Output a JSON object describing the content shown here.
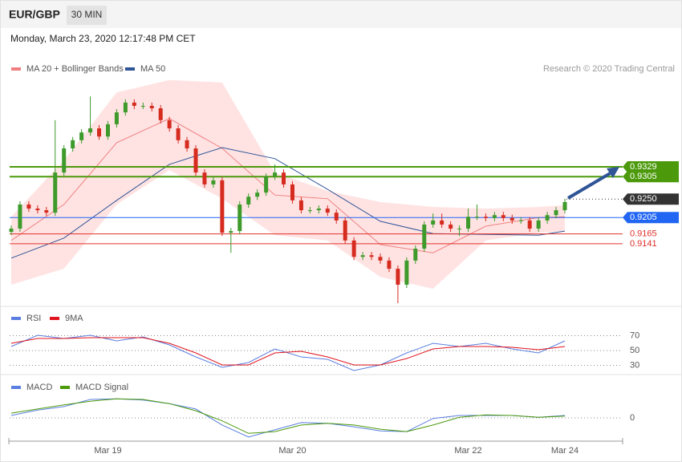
{
  "header": {
    "symbol": "EUR/GBP",
    "interval": "30 MIN",
    "timestamp": "Monday, March 23, 2020 12:17:48 PM CET",
    "credit": "Research © 2020 Trading Central"
  },
  "chart_data": [
    {
      "type": "candlestick",
      "categories": [
        null,
        null,
        null,
        null,
        null,
        null,
        null,
        null,
        null,
        null,
        null,
        "Mar 19",
        null,
        null,
        null,
        null,
        null,
        null,
        null,
        null,
        null,
        null,
        null,
        null,
        null,
        null,
        null,
        null,
        null,
        null,
        null,
        null,
        "Mar 20",
        null,
        null,
        null,
        null,
        null,
        null,
        null,
        null,
        null,
        null,
        null,
        null,
        null,
        null,
        null,
        null,
        null,
        null,
        null,
        "Mar 22",
        null,
        null,
        null,
        null,
        null,
        null,
        null,
        null,
        null,
        null,
        "Mar 24"
      ],
      "open": [
        0.917,
        0.9178,
        0.9237,
        0.9227,
        0.9223,
        0.9217,
        0.9315,
        0.9374,
        0.9394,
        0.9413,
        0.9423,
        0.9403,
        0.9433,
        0.9462,
        0.9486,
        0.9478,
        0.9478,
        0.9472,
        0.9443,
        0.9423,
        0.9394,
        0.9374,
        0.9315,
        0.9286,
        0.9296,
        0.9168,
        0.9172,
        0.9237,
        0.9256,
        0.9266,
        0.9305,
        0.9315,
        0.9286,
        0.9247,
        0.9223,
        0.9223,
        0.9227,
        0.9217,
        0.9198,
        0.9149,
        0.9109,
        0.9113,
        0.9109,
        0.91,
        0.908,
        0.9041,
        0.91,
        0.9129,
        0.9188,
        0.9198,
        0.9188,
        0.9178,
        0.9178,
        0.9207,
        0.9207,
        0.9204,
        0.9211,
        0.9204,
        0.9198,
        0.9198,
        0.9178,
        0.9198,
        0.9211,
        0.9223
      ],
      "high": [
        0.9186,
        0.9245,
        0.9245,
        0.9235,
        0.9231,
        0.9443,
        0.9382,
        0.9402,
        0.9421,
        0.9501,
        0.9431,
        0.9441,
        0.947,
        0.9494,
        0.9494,
        0.9486,
        0.9486,
        0.948,
        0.9451,
        0.9431,
        0.9402,
        0.9382,
        0.9323,
        0.9304,
        0.9304,
        0.918,
        0.9245,
        0.9264,
        0.9274,
        0.9313,
        0.9335,
        0.9323,
        0.9294,
        0.9255,
        0.9231,
        0.9235,
        0.9235,
        0.9225,
        0.9206,
        0.9157,
        0.9121,
        0.9121,
        0.9117,
        0.9108,
        0.9088,
        0.9108,
        0.9137,
        0.9196,
        0.9215,
        0.9215,
        0.9196,
        0.9186,
        0.9227,
        0.9237,
        0.9215,
        0.9219,
        0.9219,
        0.9212,
        0.9206,
        0.9206,
        0.9206,
        0.9219,
        0.9231,
        0.9251
      ],
      "low": [
        0.9162,
        0.917,
        0.9219,
        0.9215,
        0.9209,
        0.9209,
        0.9307,
        0.9366,
        0.9386,
        0.9405,
        0.9395,
        0.9395,
        0.9425,
        0.9454,
        0.947,
        0.947,
        0.9464,
        0.9435,
        0.9415,
        0.9386,
        0.9366,
        0.9307,
        0.9278,
        0.9278,
        0.916,
        0.9119,
        0.9164,
        0.9229,
        0.9248,
        0.9258,
        0.9297,
        0.9278,
        0.9239,
        0.9215,
        0.9215,
        0.9215,
        0.9209,
        0.919,
        0.9141,
        0.9101,
        0.9101,
        0.9101,
        0.9092,
        0.9072,
        0.8996,
        0.9033,
        0.9092,
        0.9121,
        0.918,
        0.918,
        0.917,
        0.916,
        0.917,
        0.9199,
        0.9196,
        0.9196,
        0.9196,
        0.919,
        0.919,
        0.917,
        0.917,
        0.919,
        0.9203,
        0.9215
      ],
      "close": [
        0.9178,
        0.9237,
        0.9227,
        0.9223,
        0.9217,
        0.9315,
        0.9374,
        0.9394,
        0.9413,
        0.9423,
        0.9403,
        0.9433,
        0.9462,
        0.9486,
        0.9478,
        0.9478,
        0.9472,
        0.9443,
        0.9423,
        0.9394,
        0.9374,
        0.9315,
        0.9286,
        0.9296,
        0.9168,
        0.9172,
        0.9237,
        0.9256,
        0.9266,
        0.9305,
        0.9315,
        0.9286,
        0.9247,
        0.9223,
        0.9223,
        0.9227,
        0.9217,
        0.9198,
        0.9149,
        0.9109,
        0.9113,
        0.9109,
        0.91,
        0.908,
        0.9041,
        0.91,
        0.9129,
        0.9188,
        0.9198,
        0.9188,
        0.9178,
        0.9178,
        0.9207,
        0.9207,
        0.9204,
        0.9211,
        0.9204,
        0.9198,
        0.9198,
        0.9178,
        0.9198,
        0.9211,
        0.9223,
        0.9243
      ],
      "up_color": "#3d9a2b",
      "down_color": "#d62b1f",
      "ylim": [
        0.8988,
        0.9619
      ],
      "bollinger": {
        "name": "MA 20 + Bollinger Bands",
        "color": "#f08080",
        "band_color": "#ffe3e3",
        "x": [
          0,
          6,
          12,
          18,
          24,
          30,
          36,
          42,
          48,
          54,
          60,
          63
        ],
        "middle": [
          0.9149,
          0.9237,
          0.9388,
          0.9447,
          0.9374,
          0.926,
          0.9251,
          0.9139,
          0.9119,
          0.9184,
          0.9205,
          0.9207
        ],
        "upper": [
          0.9207,
          0.9345,
          0.9511,
          0.9541,
          0.9535,
          0.9315,
          0.927,
          0.9243,
          0.9231,
          0.9227,
          0.9231,
          0.9235
        ],
        "lower": [
          0.9041,
          0.908,
          0.9237,
          0.9321,
          0.9251,
          0.9162,
          0.9149,
          0.906,
          0.9031,
          0.9149,
          0.9168,
          0.9172
        ]
      },
      "ma50": {
        "name": "MA 50",
        "color": "#2f5597",
        "x": [
          0,
          6,
          12,
          18,
          24,
          30,
          36,
          42,
          48,
          54,
          60,
          63
        ],
        "values": [
          0.9106,
          0.9155,
          0.9247,
          0.9335,
          0.9376,
          0.9349,
          0.9274,
          0.9196,
          0.9166,
          0.9164,
          0.9162,
          0.9172
        ]
      },
      "levels": [
        {
          "value": 0.9329,
          "label": "0.9329",
          "color": "#4c9a0c",
          "style": "solid",
          "box": true
        },
        {
          "value": 0.9305,
          "label": "0.9305",
          "color": "#4c9a0c",
          "style": "solid",
          "box": true
        },
        {
          "value": 0.925,
          "label": "0.9250",
          "color": "#333333",
          "style": "dotted",
          "box": true
        },
        {
          "value": 0.9205,
          "label": "0.9205",
          "color": "#2166f3",
          "style": "solid",
          "box": true
        },
        {
          "value": 0.9165,
          "label": "0.9165",
          "color": "#e0302a",
          "style": "solid",
          "box": false
        },
        {
          "value": 0.9141,
          "label": "0.9141",
          "color": "#e0302a",
          "style": "solid",
          "box": false
        }
      ]
    },
    {
      "type": "line",
      "x": [
        0,
        3,
        6,
        9,
        12,
        15,
        18,
        21,
        24,
        27,
        30,
        33,
        36,
        39,
        42,
        45,
        48,
        51,
        54,
        57,
        60,
        63
      ],
      "series": [
        {
          "name": "RSI",
          "color": "#5b7fe0",
          "values": [
            55.4,
            70.5,
            66.2,
            70.5,
            63,
            68.4,
            57.6,
            41.4,
            27.3,
            33.8,
            52.2,
            41.4,
            38.1,
            23,
            30.5,
            46.8,
            59.7,
            55.4,
            59.7,
            52.2,
            46.8,
            63
          ]
        },
        {
          "name": "9MA",
          "color": "#e0141e",
          "values": [
            59.7,
            66.2,
            66.2,
            67.3,
            67.3,
            67.3,
            59.7,
            46.8,
            30.5,
            30.5,
            46.8,
            48.9,
            41.4,
            30.5,
            30.5,
            39.2,
            52.2,
            55.4,
            55.4,
            54.3,
            51.1,
            55.4
          ]
        }
      ],
      "ylim": [
        20,
        100
      ],
      "yticks": [
        30,
        50,
        70
      ]
    },
    {
      "type": "line",
      "x": [
        0,
        3,
        6,
        9,
        12,
        15,
        18,
        21,
        24,
        27,
        30,
        33,
        36,
        39,
        42,
        45,
        48,
        51,
        54,
        57,
        60,
        63
      ],
      "series": [
        {
          "name": "MACD",
          "color": "#5b7fe0",
          "values": [
            0.0004,
            0.0013,
            0.0019,
            0.0031,
            0.0032,
            0.003,
            0.0024,
            0.0015,
            -0.0012,
            -0.0032,
            -0.002,
            -0.0008,
            -0.0009,
            -0.0015,
            -0.0022,
            -0.0023,
            -0.0001,
            0.0004,
            0.0004,
            0.0004,
            0.0001,
            0.0004
          ]
        },
        {
          "name": "MACD Signal",
          "color": "#4c9a0c",
          "values": [
            0.0008,
            0.0015,
            0.0022,
            0.0028,
            0.0032,
            0.0031,
            0.0024,
            0.0012,
            -0.0005,
            -0.0026,
            -0.0023,
            -0.0012,
            -0.0009,
            -0.0012,
            -0.0019,
            -0.0023,
            -0.0012,
            0.0001,
            0.0005,
            0.0004,
            0.0001,
            0.0003
          ]
        }
      ],
      "ylim": [
        -0.0035,
        0.0035
      ],
      "yticks": [
        0
      ]
    }
  ]
}
